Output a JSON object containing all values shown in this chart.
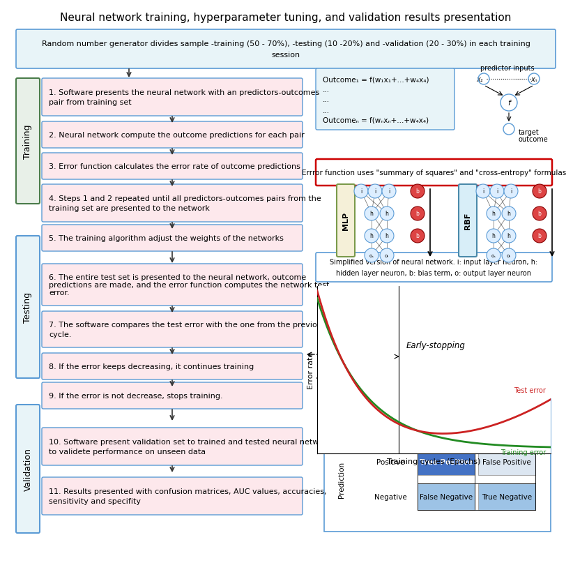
{
  "title": "Neural network training, hyperparameter tuning, and validation results presentation",
  "top_box_text": "Random number generator divides sample -training (50 - 70%), -testing (10 -20%) and -validation (20 - 30%) in each training\nsession",
  "training_steps": [
    "1. Software presents the neural network with an predictors-outcomes\npair from training set",
    "2. Neural network compute the outcome predictions for each pair",
    "3. Error function calculates the error rate of outcome predictions",
    "4. Steps 1 and 2 repeated until all predictors-outcomes pairs from the\ntraining set are presented to the network",
    "5. The training algorithm adjust the weights of the networks"
  ],
  "testing_steps": [
    "6. The entire test set is presented to the neural network, outcome\npredictions are made, and the error function computes the network test\nerror.",
    "7. The software compares the test error with the one from the previous\ncycle.",
    "8. If the error keeps decreasing, it continues training",
    "9. If the error is not decrease, stops training."
  ],
  "validation_steps": [
    "10. Software present validation set to trained and tested neural network\nto validete performance on unseen data",
    "11. Results presented with confusion matrices, AUC values, accuracies,\nsensitivity and specifity"
  ],
  "outcome_formula_line1": "Outcome",
  "outcome_formula_line2": "Outcome",
  "error_box_text": "Errror function uses \"summary of squares\" and \"cross-entropy\" formulas",
  "nn_caption": "Simplified version of neural network. i: input layer neuron, h:\nhidden layer neuron, b: bias term, o: output layer neuron",
  "bg_color": "#ffffff",
  "top_box_fill": "#e8f4f8",
  "top_box_edge": "#5b9bd5",
  "step_fill": "#fde8ec",
  "step_edge": "#5b9bd5",
  "training_label_fill": "#e8f0e8",
  "training_label_edge": "#4a7c4a",
  "testing_label_fill": "#e8f4f8",
  "testing_label_edge": "#5b9bd5",
  "validation_label_fill": "#e8f4f8",
  "validation_label_edge": "#5b9bd5",
  "outcome_box_fill": "#e8f4f8",
  "outcome_box_edge": "#5b9bd5",
  "error_box_fill": "#ffffff",
  "error_box_edge": "#cc0000",
  "nn_diagram_fill": "#e8f4f8",
  "nn_diagram_edge": "#5b9bd5",
  "mlp_fill": "#f5f0d8",
  "mlp_edge": "#7a9a4a",
  "rbf_fill": "#d8eef8",
  "rbf_edge": "#4a8aaa",
  "arrow_color": "#333333"
}
